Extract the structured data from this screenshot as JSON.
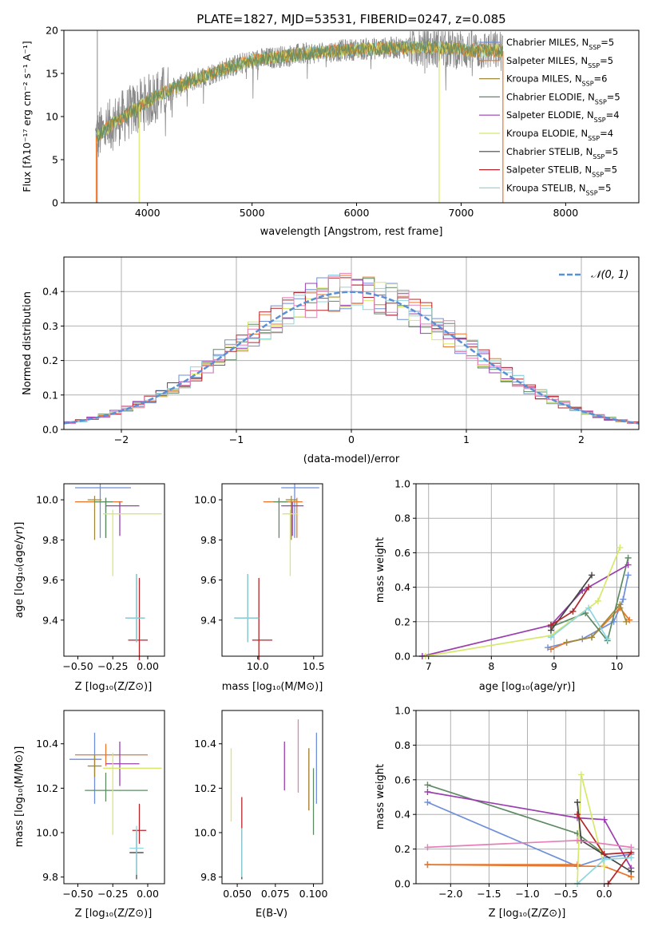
{
  "figure_title": "PLATE=1827, MJD=53531, FIBERID=0247, z=0.085",
  "colors": {
    "Chabrier MILES": "#6f8fd8",
    "Salpeter MILES": "#e8762c",
    "Kroupa MILES": "#a08a3a",
    "Chabrier ELODIE": "#5e8a63",
    "Salpeter ELODIE": "#9b3fb0",
    "Kroupa ELODIE": "#d8e86a",
    "Chabrier STELIB": "#444444",
    "Salpeter STELIB": "#b5252a",
    "Kroupa STELIB": "#8fd6e0",
    "data": "#888888",
    "gaussian": "#5b8fd4"
  },
  "chart_data": [
    {
      "id": "spectrum",
      "type": "line",
      "xlabel": "wavelength [Angstrom, rest frame]",
      "ylabel": "Flux [fλ10⁻¹⁷ erg cm⁻² s⁻¹ A⁻¹]",
      "xlim": [
        3200,
        8700
      ],
      "ylim": [
        0,
        20
      ],
      "xticks": [
        4000,
        5000,
        6000,
        7000,
        8000
      ],
      "yticks": [
        0,
        5,
        10,
        15,
        20
      ],
      "legend_position": "right",
      "legend": [
        {
          "model": "Chabrier MILES",
          "n": "5"
        },
        {
          "model": "Salpeter MILES",
          "n": "5"
        },
        {
          "model": "Kroupa MILES",
          "n": "6"
        },
        {
          "model": "Chabrier ELODIE",
          "n": "5"
        },
        {
          "model": "Salpeter ELODIE",
          "n": "4"
        },
        {
          "model": "Kroupa ELODIE",
          "n": "4"
        },
        {
          "model": "Chabrier STELIB",
          "n": "5"
        },
        {
          "model": "Salpeter STELIB",
          "n": "5"
        },
        {
          "model": "Kroupa STELIB",
          "n": "5"
        }
      ],
      "data_range": [
        3500,
        7400
      ],
      "continuum": [
        [
          3500,
          7.5
        ],
        [
          3700,
          9.5
        ],
        [
          3900,
          11
        ],
        [
          4100,
          12.5
        ],
        [
          4300,
          13.5
        ],
        [
          4500,
          14.5
        ],
        [
          4800,
          15.8
        ],
        [
          5000,
          16.5
        ],
        [
          5300,
          17
        ],
        [
          5600,
          17.4
        ],
        [
          6000,
          17.8
        ],
        [
          6400,
          18
        ],
        [
          6800,
          18
        ],
        [
          7100,
          17.7
        ],
        [
          7400,
          17.6
        ]
      ]
    },
    {
      "id": "residuals",
      "type": "histogram",
      "xlabel": "(data-model)/error",
      "ylabel": "Normed distribution",
      "xlim": [
        -2.5,
        2.5
      ],
      "ylim": [
        0,
        0.5
      ],
      "xticks": [
        -2,
        -1,
        0,
        1,
        2
      ],
      "yticks": [
        0.0,
        0.1,
        0.2,
        0.3,
        0.4
      ],
      "grid": true,
      "legend_position": "top-right",
      "legend_label": "𝒩(0, 1)",
      "bin_width": 0.1
    },
    {
      "id": "age-vs-Z",
      "type": "scatter",
      "xlabel": "Z [log₁₀(Z/Z⊙)]",
      "ylabel": "age  [log₁₀(age/yr)]",
      "xlim": [
        -0.6,
        0.12
      ],
      "ylim": [
        9.22,
        10.08
      ],
      "xticks": [
        -0.5,
        -0.25,
        0.0
      ],
      "xtick_labels": [
        "−0.50",
        "−0.25",
        "0.00"
      ],
      "yticks": [
        9.4,
        9.6,
        9.8,
        10.0
      ],
      "points": [
        {
          "series": "Chabrier MILES",
          "x": -0.34,
          "y": 10.06,
          "xerr": [
            0.18,
            0.22
          ],
          "yerr": [
            0.25,
            0.02
          ]
        },
        {
          "series": "Salpeter MILES",
          "x": -0.3,
          "y": 9.99,
          "xerr": [
            0.22,
            0.12
          ],
          "yerr": [
            0.18,
            0.02
          ]
        },
        {
          "series": "Kroupa MILES",
          "x": -0.38,
          "y": 10.0,
          "xerr": [
            0.05,
            0.05
          ],
          "yerr": [
            0.2,
            0.02
          ]
        },
        {
          "series": "Chabrier ELODIE",
          "x": -0.3,
          "y": 9.99,
          "xerr": [
            0.08,
            0.05
          ],
          "yerr": [
            0.18,
            0.02
          ]
        },
        {
          "series": "Salpeter ELODIE",
          "x": -0.2,
          "y": 9.97,
          "xerr": [
            0.1,
            0.14
          ],
          "yerr": [
            0.15,
            0.02
          ]
        },
        {
          "series": "Kroupa ELODIE",
          "x": -0.25,
          "y": 9.93,
          "xerr": [
            0.07,
            0.35
          ],
          "yerr": [
            0.31,
            0.02
          ]
        },
        {
          "series": "Chabrier STELIB",
          "x": -0.08,
          "y": 9.41,
          "xerr": [
            0.08,
            0.06
          ],
          "yerr": [
            0.12,
            0.22
          ]
        },
        {
          "series": "Salpeter STELIB",
          "x": -0.06,
          "y": 9.3,
          "xerr": [
            0.08,
            0.06
          ],
          "yerr": [
            0.1,
            0.31
          ]
        },
        {
          "series": "Kroupa STELIB",
          "x": -0.08,
          "y": 9.41,
          "xerr": [
            0.08,
            0.06
          ],
          "yerr": [
            0.12,
            0.22
          ]
        }
      ]
    },
    {
      "id": "age-vs-mass",
      "type": "scatter",
      "xlabel": "mass [log₁₀(M/M⊙)]",
      "ylabel": "",
      "xlim": [
        9.68,
        10.58
      ],
      "ylim": [
        9.22,
        10.08
      ],
      "xticks": [
        10.0,
        10.5
      ],
      "xtick_labels": [
        "10.0",
        "10.5"
      ],
      "yticks": [
        9.4,
        9.6,
        9.8,
        10.0
      ],
      "points": [
        {
          "series": "Chabrier MILES",
          "x": 10.33,
          "y": 10.06,
          "xerr": [
            0.12,
            0.22
          ],
          "yerr": [
            0.25,
            0.02
          ]
        },
        {
          "series": "Salpeter MILES",
          "x": 10.35,
          "y": 9.99,
          "xerr": [
            0.3,
            0.05
          ],
          "yerr": [
            0.18,
            0.02
          ]
        },
        {
          "series": "Kroupa MILES",
          "x": 10.3,
          "y": 10.0,
          "xerr": [
            0.05,
            0.05
          ],
          "yerr": [
            0.2,
            0.02
          ]
        },
        {
          "series": "Chabrier ELODIE",
          "x": 10.19,
          "y": 9.99,
          "xerr": [
            0.05,
            0.08
          ],
          "yerr": [
            0.18,
            0.02
          ]
        },
        {
          "series": "Salpeter ELODIE",
          "x": 10.31,
          "y": 9.97,
          "xerr": [
            0.1,
            0.1
          ],
          "yerr": [
            0.15,
            0.02
          ]
        },
        {
          "series": "Kroupa ELODIE",
          "x": 10.29,
          "y": 9.93,
          "xerr": [
            0.07,
            0.07
          ],
          "yerr": [
            0.31,
            0.02
          ]
        },
        {
          "series": "Chabrier STELIB",
          "x": 9.91,
          "y": 9.41,
          "xerr": [
            0.12,
            0.1
          ],
          "yerr": [
            0.12,
            0.22
          ]
        },
        {
          "series": "Salpeter STELIB",
          "x": 10.01,
          "y": 9.3,
          "xerr": [
            0.06,
            0.12
          ],
          "yerr": [
            0.1,
            0.31
          ]
        },
        {
          "series": "Kroupa STELIB",
          "x": 9.91,
          "y": 9.41,
          "xerr": [
            0.12,
            0.1
          ],
          "yerr": [
            0.12,
            0.22
          ]
        }
      ]
    },
    {
      "id": "massweight-vs-age",
      "type": "line",
      "xlabel": "age  [log₁₀(age/yr)]",
      "ylabel": "mass weight",
      "xlim": [
        6.8,
        10.35
      ],
      "ylim": [
        0,
        1
      ],
      "xticks": [
        7,
        8,
        9,
        10
      ],
      "yticks": [
        0.0,
        0.2,
        0.4,
        0.6,
        0.8,
        1.0
      ],
      "grid": true,
      "series": [
        {
          "name": "Chabrier MILES",
          "x": [
            8.9,
            9.45,
            9.95,
            10.1,
            10.18
          ],
          "y": [
            0.05,
            0.1,
            0.2,
            0.33,
            0.47
          ]
        },
        {
          "name": "Salpeter MILES",
          "x": [
            8.95,
            9.2,
            9.6,
            10.05,
            10.2
          ],
          "y": [
            0.04,
            0.08,
            0.11,
            0.28,
            0.21
          ]
        },
        {
          "name": "Kroupa MILES",
          "x": [
            9.2,
            9.6,
            10.05,
            10.15
          ],
          "y": [
            0.08,
            0.11,
            0.3,
            0.2
          ]
        },
        {
          "name": "Chabrier ELODIE",
          "x": [
            8.95,
            9.5,
            9.85,
            10.18
          ],
          "y": [
            0.17,
            0.25,
            0.09,
            0.57
          ]
        },
        {
          "name": "Salpeter ELODIE",
          "x": [
            6.9,
            8.95,
            9.45,
            10.18
          ],
          "y": [
            0.0,
            0.18,
            0.38,
            0.53
          ]
        },
        {
          "name": "Kroupa ELODIE",
          "x": [
            6.95,
            8.95,
            9.7,
            10.05
          ],
          "y": [
            0.0,
            0.12,
            0.32,
            0.63
          ]
        },
        {
          "name": "Chabrier STELIB",
          "x": [
            8.95,
            9.6
          ],
          "y": [
            0.15,
            0.47
          ]
        },
        {
          "name": "Salpeter STELIB",
          "x": [
            8.95,
            9.3,
            9.55
          ],
          "y": [
            0.18,
            0.26,
            0.4
          ]
        },
        {
          "name": "Kroupa STELIB",
          "x": [
            8.95,
            9.55,
            9.85
          ],
          "y": [
            0.11,
            0.28,
            0.1
          ]
        }
      ]
    },
    {
      "id": "mass-vs-Z",
      "type": "scatter",
      "xlabel": "Z [log₁₀(Z/Z⊙)]",
      "ylabel": "mass [log₁₀(M/M⊙)]",
      "xlim": [
        -0.6,
        0.12
      ],
      "ylim": [
        9.77,
        10.55
      ],
      "xticks": [
        -0.5,
        -0.25,
        0.0
      ],
      "xtick_labels": [
        "−0.50",
        "−0.25",
        "0.00"
      ],
      "yticks": [
        9.8,
        10.0,
        10.2,
        10.4
      ],
      "points": [
        {
          "series": "Chabrier MILES",
          "x": -0.38,
          "y": 10.33,
          "xerr": [
            0.18,
            0.05
          ],
          "yerr": [
            0.2,
            0.12
          ]
        },
        {
          "series": "Salpeter MILES",
          "x": -0.3,
          "y": 10.35,
          "xerr": [
            0.22,
            0.3
          ],
          "yerr": [
            0.05,
            0.05
          ]
        },
        {
          "series": "Kroupa MILES",
          "x": -0.38,
          "y": 10.3,
          "xerr": [
            0.05,
            0.05
          ],
          "yerr": [
            0.05,
            0.05
          ]
        },
        {
          "series": "Chabrier ELODIE",
          "x": -0.3,
          "y": 10.19,
          "xerr": [
            0.15,
            0.3
          ],
          "yerr": [
            0.05,
            0.08
          ]
        },
        {
          "series": "Salpeter ELODIE",
          "x": -0.2,
          "y": 10.31,
          "xerr": [
            0.1,
            0.14
          ],
          "yerr": [
            0.1,
            0.1
          ]
        },
        {
          "series": "Kroupa ELODIE",
          "x": -0.25,
          "y": 10.29,
          "xerr": [
            0.07,
            0.35
          ],
          "yerr": [
            0.3,
            0.07
          ]
        },
        {
          "series": "Chabrier STELIB",
          "x": -0.08,
          "y": 9.91,
          "xerr": [
            0.05,
            0.05
          ],
          "yerr": [
            0.12,
            0.1
          ]
        },
        {
          "series": "Salpeter STELIB",
          "x": -0.06,
          "y": 10.01,
          "xerr": [
            0.05,
            0.05
          ],
          "yerr": [
            0.06,
            0.12
          ]
        },
        {
          "series": "Kroupa STELIB",
          "x": -0.08,
          "y": 9.93,
          "xerr": [
            0.05,
            0.05
          ],
          "yerr": [
            0.12,
            0.1
          ]
        }
      ]
    },
    {
      "id": "mass-vs-EBV",
      "type": "scatter",
      "xlabel": "E(B-V)",
      "ylabel": "",
      "xlim": [
        0.04,
        0.106
      ],
      "ylim": [
        9.77,
        10.55
      ],
      "xticks": [
        0.05,
        0.075,
        0.1
      ],
      "xtick_labels": [
        "0.050",
        "0.075",
        "0.100"
      ],
      "yticks": [
        9.8,
        10.0,
        10.2,
        10.4
      ],
      "points": [
        {
          "series": "Chabrier MILES",
          "x": 0.102,
          "y": 10.33,
          "xerr": [
            0,
            0
          ],
          "yerr": [
            0.2,
            0.12
          ]
        },
        {
          "series": "Salpeter MILES",
          "x": 0.097,
          "y": 10.3,
          "xerr": [
            0,
            0
          ],
          "yerr": [
            0.2,
            0.08
          ]
        },
        {
          "series": "Kroupa MILES",
          "x": 0.097,
          "y": 10.3,
          "xerr": [
            0,
            0
          ],
          "yerr": [
            0.2,
            0.08
          ]
        },
        {
          "series": "Chabrier ELODIE",
          "x": 0.1,
          "y": 10.19,
          "xerr": [
            0,
            0
          ],
          "yerr": [
            0.2,
            0.1
          ]
        },
        {
          "series": "Salpeter ELODIE",
          "x": 0.081,
          "y": 10.31,
          "xerr": [
            0,
            0
          ],
          "yerr": [
            0.12,
            0.1
          ]
        },
        {
          "series": "Kroupa ELODIE",
          "x": 0.046,
          "y": 10.21,
          "xerr": [
            0,
            0
          ],
          "yerr": [
            0.16,
            0.17
          ]
        },
        {
          "series": "Chabrier STELIB",
          "x": 0.053,
          "y": 9.91,
          "xerr": [
            0,
            0
          ],
          "yerr": [
            0.12,
            0.1
          ]
        },
        {
          "series": "Salpeter STELIB",
          "x": 0.053,
          "y": 10.06,
          "xerr": [
            0,
            0
          ],
          "yerr": [
            0.1,
            0.1
          ]
        },
        {
          "series": "Kroupa STELIB",
          "x": 0.053,
          "y": 9.92,
          "xerr": [
            0,
            0
          ],
          "yerr": [
            0.12,
            0.1
          ]
        },
        {
          "series": "Salpeter ELODIE pink",
          "x": 0.09,
          "y": 10.33,
          "xerr": [
            0,
            0
          ],
          "yerr": [
            0.15,
            0.18
          ]
        }
      ]
    },
    {
      "id": "massweight-vs-Z",
      "type": "line",
      "xlabel": "Z [log₁₀(Z/Z⊙)]",
      "ylabel": "mass weight",
      "xlim": [
        -2.45,
        0.45
      ],
      "ylim": [
        0,
        1
      ],
      "xticks": [
        -2.0,
        -1.5,
        -1.0,
        -0.5,
        0.0
      ],
      "xtick_labels": [
        "−2.0",
        "−1.5",
        "−1.0",
        "−0.5",
        "0.0"
      ],
      "yticks": [
        0.0,
        0.2,
        0.4,
        0.6,
        0.8,
        1.0
      ],
      "grid": true,
      "series": [
        {
          "name": "Chabrier MILES",
          "x": [
            -2.3,
            -0.35,
            0.0,
            0.35
          ],
          "y": [
            0.47,
            0.1,
            0.15,
            0.17
          ]
        },
        {
          "name": "Salpeter MILES",
          "x": [
            -2.3,
            -0.35,
            -2.3,
            0.0,
            0.35
          ],
          "y": [
            0.11,
            0.11,
            0.11,
            0.1,
            0.04
          ]
        },
        {
          "name": "Chabrier ELODIE",
          "x": [
            -2.3,
            -0.35,
            0.0
          ],
          "y": [
            0.57,
            0.29,
            0.17
          ]
        },
        {
          "name": "Salpeter ELODIE",
          "x": [
            -2.3,
            -0.35,
            0.0,
            0.35
          ],
          "y": [
            0.53,
            0.38,
            0.37,
            0.09
          ]
        },
        {
          "name": "Kroupa ELODIE",
          "x": [
            -0.35,
            -0.3,
            0.0
          ],
          "y": [
            0.0,
            0.63,
            0.1
          ]
        },
        {
          "name": "Chabrier STELIB",
          "x": [
            -0.35,
            -0.3,
            0.35
          ],
          "y": [
            0.47,
            0.25,
            0.07
          ]
        },
        {
          "name": "Salpeter STELIB",
          "x": [
            -0.35,
            0.0,
            0.35,
            0.05
          ],
          "y": [
            0.4,
            0.17,
            0.18,
            0.0
          ]
        },
        {
          "name": "Kroupa STELIB",
          "x": [
            -0.35,
            0.0,
            0.35
          ],
          "y": [
            0.0,
            0.14,
            0.15
          ]
        },
        {
          "name": "pink",
          "x": [
            -2.3,
            -0.35,
            0.35
          ],
          "y": [
            0.21,
            0.25,
            0.21
          ]
        }
      ]
    }
  ]
}
